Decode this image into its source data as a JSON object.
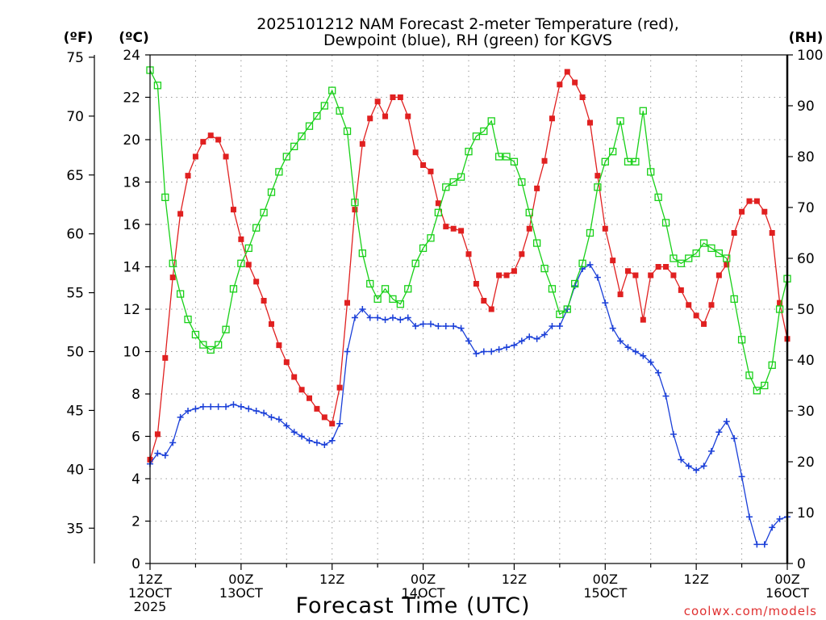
{
  "chart_data": {
    "type": "line",
    "title_line1": "2025101212 NAM Forecast 2-meter Temperature (red),",
    "title_line2": "Dewpoint (blue), RH (green) for KGVS",
    "units": {
      "f": "(ºF)",
      "c": "(ºC)",
      "rh": "(RH)"
    },
    "xlabel": "Forecast Time (UTC)",
    "watermark": "coolwx.com/models",
    "x_ticks": [
      {
        "h": 0,
        "lines": [
          "12Z",
          "12OCT",
          "2025"
        ]
      },
      {
        "h": 12,
        "lines": [
          "00Z",
          "13OCT"
        ]
      },
      {
        "h": 24,
        "lines": [
          "12Z"
        ]
      },
      {
        "h": 36,
        "lines": [
          "00Z",
          "14OCT"
        ]
      },
      {
        "h": 48,
        "lines": [
          "12Z"
        ]
      },
      {
        "h": 60,
        "lines": [
          "00Z",
          "15OCT"
        ]
      },
      {
        "h": 72,
        "lines": [
          "12Z"
        ]
      },
      {
        "h": 84,
        "lines": [
          "00Z",
          "16OCT"
        ]
      }
    ],
    "xlim": [
      0,
      84
    ],
    "c_axis": {
      "ylim": [
        0,
        24
      ],
      "ticks": [
        0,
        2,
        4,
        6,
        8,
        10,
        12,
        14,
        16,
        18,
        20,
        22,
        24
      ]
    },
    "f_axis": {
      "ticks": [
        35,
        40,
        45,
        50,
        55,
        60,
        65,
        70,
        75
      ]
    },
    "rh_axis": {
      "ylim": [
        0,
        100
      ],
      "ticks": [
        0,
        10,
        20,
        30,
        40,
        50,
        60,
        70,
        80,
        90,
        100
      ]
    },
    "grid": true,
    "colors": {
      "temperature": "#e02020",
      "dewpoint": "#1a3fd8",
      "rh": "#18d018"
    },
    "series": [
      {
        "key": "temperature",
        "unit": "C",
        "marker": "filled-square",
        "values": [
          4.9,
          6.1,
          9.7,
          13.5,
          16.5,
          18.3,
          19.2,
          19.9,
          20.2,
          20.0,
          19.2,
          16.7,
          15.3,
          14.1,
          13.3,
          12.4,
          11.3,
          10.3,
          9.5,
          8.8,
          8.2,
          7.8,
          7.3,
          6.9,
          6.6,
          8.3,
          12.3,
          16.7,
          19.8,
          21.0,
          21.8,
          21.1,
          22.0,
          22.0,
          21.1,
          19.4,
          18.8,
          18.5,
          17.0,
          15.9,
          15.8,
          15.7,
          14.6,
          13.2,
          12.4,
          12.0,
          13.6,
          13.6,
          13.8,
          14.6,
          15.8,
          17.7,
          19.0,
          21.0,
          22.6,
          23.2,
          22.7,
          22.0,
          20.8,
          18.3,
          15.8,
          14.3,
          12.7,
          13.8,
          13.6,
          11.5,
          13.6,
          14.0,
          14.0,
          13.6,
          12.9,
          12.2,
          11.7,
          11.3,
          12.2,
          13.6,
          14.1,
          15.6,
          16.6,
          17.1,
          17.1,
          16.6,
          15.6,
          12.3,
          10.6
        ]
      },
      {
        "key": "dewpoint",
        "unit": "C",
        "marker": "plus",
        "values": [
          4.7,
          5.2,
          5.1,
          5.7,
          6.9,
          7.2,
          7.3,
          7.4,
          7.4,
          7.4,
          7.4,
          7.5,
          7.4,
          7.3,
          7.2,
          7.1,
          6.9,
          6.8,
          6.5,
          6.2,
          6.0,
          5.8,
          5.7,
          5.6,
          5.8,
          6.6,
          10.0,
          11.6,
          12.0,
          11.6,
          11.6,
          11.5,
          11.6,
          11.5,
          11.6,
          11.2,
          11.3,
          11.3,
          11.2,
          11.2,
          11.2,
          11.1,
          10.5,
          9.9,
          10.0,
          10.0,
          10.1,
          10.2,
          10.3,
          10.5,
          10.7,
          10.6,
          10.8,
          11.2,
          11.2,
          12.0,
          13.1,
          13.9,
          14.1,
          13.5,
          12.3,
          11.1,
          10.5,
          10.2,
          10.0,
          9.8,
          9.5,
          9.0,
          7.9,
          6.1,
          4.9,
          4.6,
          4.4,
          4.6,
          5.3,
          6.2,
          6.7,
          5.9,
          4.1,
          2.2,
          0.9,
          0.9,
          1.7,
          2.1,
          2.2
        ]
      },
      {
        "key": "rh",
        "unit": "%",
        "marker": "open-square",
        "values": [
          97,
          94,
          72,
          59,
          53,
          48,
          45,
          43,
          42,
          43,
          46,
          54,
          59,
          62,
          66,
          69,
          73,
          77,
          80,
          82,
          84,
          86,
          88,
          90,
          93,
          89,
          85,
          71,
          61,
          55,
          52,
          54,
          52,
          51,
          54,
          59,
          62,
          64,
          69,
          74,
          75,
          76,
          81,
          84,
          85,
          87,
          80,
          80,
          79,
          75,
          69,
          63,
          58,
          54,
          49,
          50,
          55,
          59,
          65,
          74,
          79,
          81,
          87,
          79,
          79,
          89,
          77,
          72,
          67,
          60,
          59,
          60,
          61,
          63,
          62,
          61,
          60,
          52,
          44,
          37,
          34,
          35,
          39,
          50,
          56
        ]
      }
    ]
  }
}
